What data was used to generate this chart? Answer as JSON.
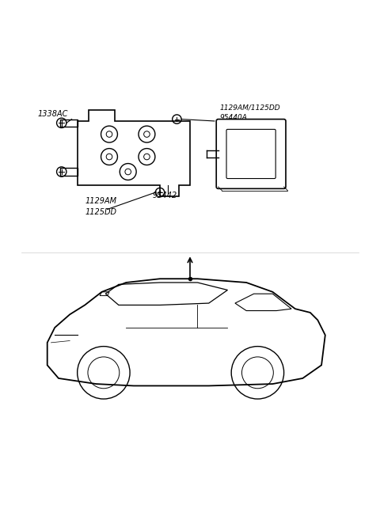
{
  "bg_color": "#ffffff",
  "line_color": "#000000",
  "text_color": "#000000",
  "figsize": [
    4.8,
    6.57
  ],
  "dpi": 100,
  "label_1338AC": "1338AC",
  "label_top_right": "1129AM/1125DD\n95440A",
  "label_95442": "95442",
  "label_bottom": "1129AM\n1125DD"
}
